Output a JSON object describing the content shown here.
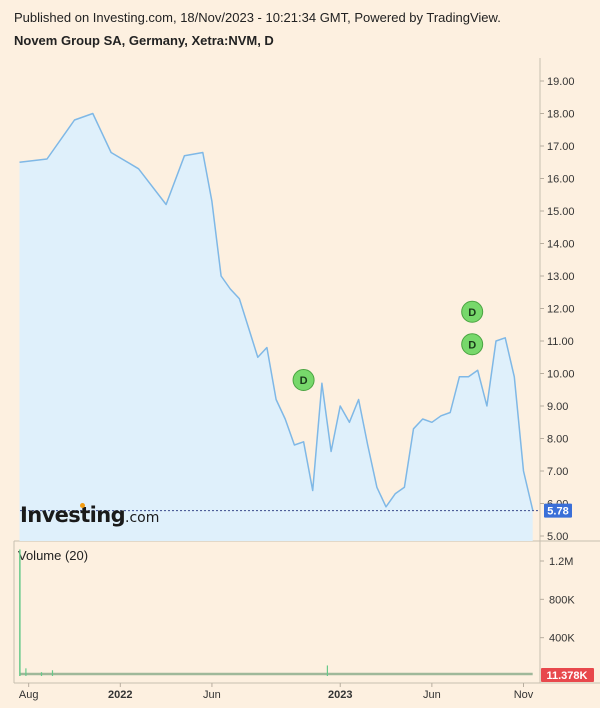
{
  "header": {
    "published": "Published on Investing.com, 18/Nov/2023 - 10:21:34 GMT, Powered by TradingView.",
    "title": "Novem Group SA, Germany, Xetra:NVM, D"
  },
  "logo": {
    "main": "Investing",
    "suffix": ".com"
  },
  "colors": {
    "background": "#fdf0e0",
    "line": "#7fb8e6",
    "area": "#dff0fb",
    "price_tag": "#3a6fd8",
    "volume_tag": "#e8484c",
    "dividend_marker": "#77d86b"
  },
  "chart_data": {
    "type": "area",
    "price_panel": {
      "ylim": [
        5.0,
        19.4
      ],
      "y_ticks": [
        "5.00",
        "6.00",
        "7.00",
        "8.00",
        "9.00",
        "10.00",
        "11.00",
        "12.00",
        "13.00",
        "14.00",
        "15.00",
        "16.00",
        "17.00",
        "18.00",
        "19.00"
      ],
      "last_value": "5.78",
      "x": [
        0,
        1.5,
        3,
        4,
        5,
        6.5,
        8,
        9,
        10,
        10.5,
        11,
        11.5,
        12,
        12.5,
        13,
        13.5,
        14,
        14.5,
        15,
        15.5,
        16,
        16.5,
        17,
        17.5,
        18,
        18.5,
        19,
        19.5,
        20,
        20.5,
        21,
        21.5,
        22,
        22.5,
        23,
        23.5,
        24,
        24.5,
        25,
        25.5,
        26,
        26.5,
        27,
        27.5,
        28
      ],
      "values": [
        16.5,
        16.6,
        17.8,
        18.0,
        16.8,
        16.3,
        15.2,
        16.7,
        16.8,
        15.3,
        13.0,
        12.6,
        12.3,
        11.4,
        10.5,
        10.8,
        9.2,
        8.6,
        7.8,
        7.9,
        6.4,
        9.7,
        7.6,
        9.0,
        8.5,
        9.2,
        7.8,
        6.5,
        5.9,
        6.3,
        6.5,
        8.3,
        8.6,
        8.5,
        8.7,
        8.8,
        9.9,
        9.9,
        10.1,
        9.0,
        11.0,
        11.1,
        9.9,
        7.0,
        5.8
      ],
      "dividend_markers": [
        {
          "label": "D",
          "x": 15.5,
          "y": 9.8
        },
        {
          "label": "D",
          "x": 24.7,
          "y": 11.9
        },
        {
          "label": "D",
          "x": 24.7,
          "y": 10.9
        }
      ]
    },
    "volume_panel": {
      "label": "Volume (20)",
      "ylim": [
        0,
        1380000
      ],
      "y_ticks": [
        "400K",
        "800K",
        "1.2M"
      ],
      "last_value": "11.378K"
    },
    "x_ticks": [
      {
        "label": "Aug",
        "x": 0.5
      },
      {
        "label": "2022",
        "x": 5.5
      },
      {
        "label": "Jun",
        "x": 10.5
      },
      {
        "label": "2023",
        "x": 17.5
      },
      {
        "label": "Jun",
        "x": 22.5
      },
      {
        "label": "Nov",
        "x": 27.5
      }
    ],
    "xlim": [
      -0.3,
      28.4
    ]
  }
}
